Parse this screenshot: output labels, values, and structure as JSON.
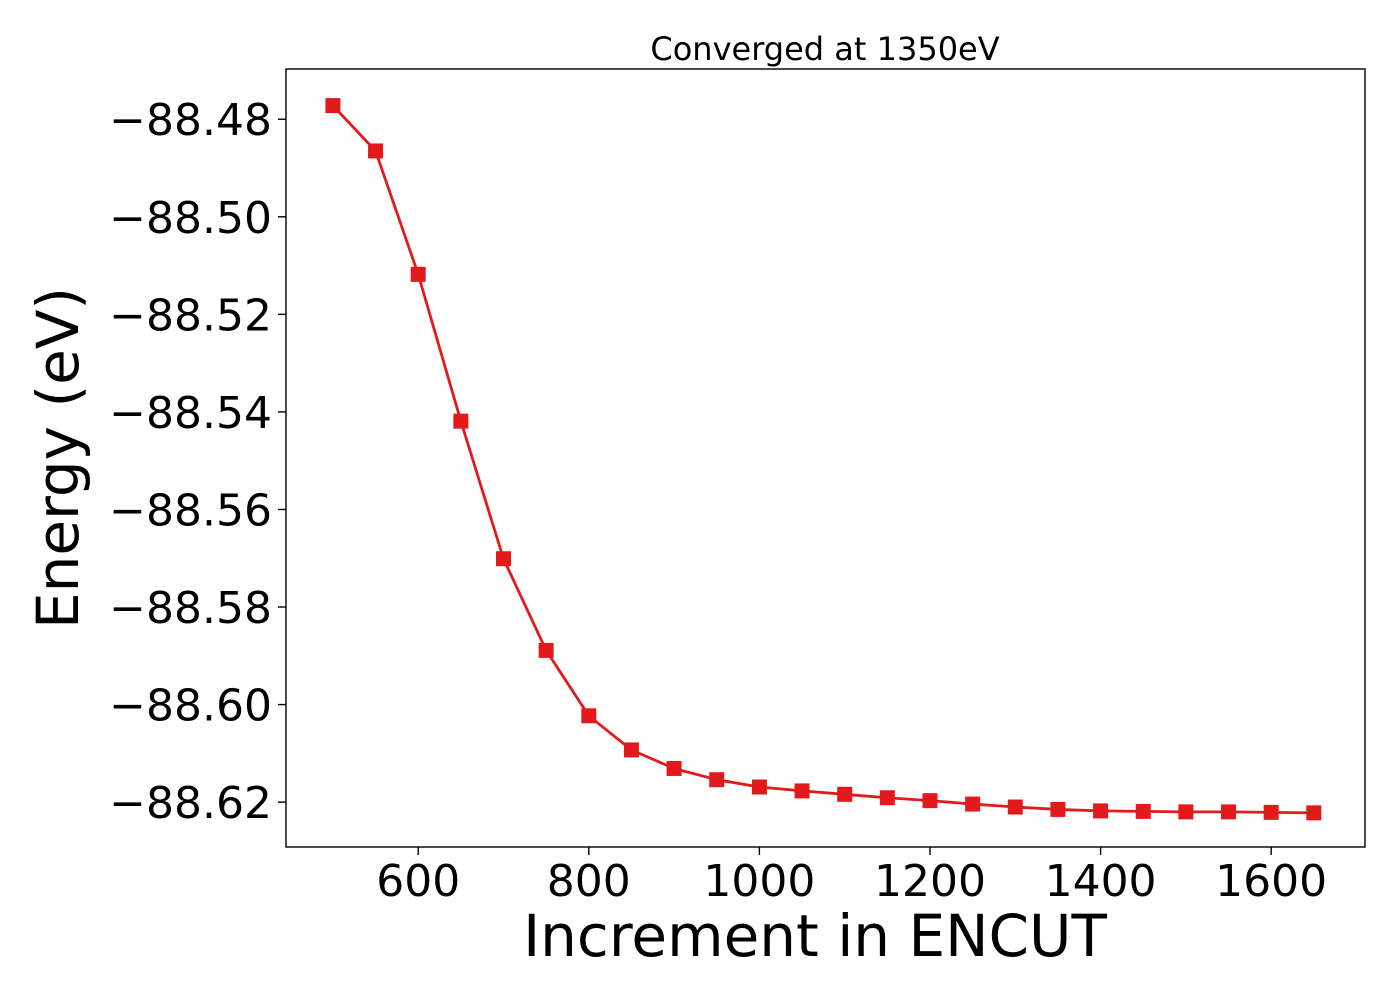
{
  "chart_data": {
    "type": "line",
    "title": "Converged at 1350eV",
    "xlabel": "Increment in ENCUT",
    "ylabel": "Energy (eV)",
    "xlim": [
      445,
      1710
    ],
    "ylim": [
      -88.6292,
      -88.4697
    ],
    "xticks": [
      600,
      800,
      1000,
      1200,
      1400,
      1600
    ],
    "yticks": [
      -88.48,
      -88.5,
      -88.52,
      -88.54,
      -88.56,
      -88.58,
      -88.6,
      -88.62
    ],
    "ytick_labels": [
      "−88.48",
      "−88.50",
      "−88.52",
      "−88.54",
      "−88.56",
      "−88.58",
      "−88.60",
      "−88.62"
    ],
    "grid": false,
    "marker": "square",
    "color": "#e31a1c",
    "series": [
      {
        "x": [
          500,
          550,
          600,
          650,
          700,
          750,
          800,
          850,
          900,
          950,
          1000,
          1050,
          1100,
          1150,
          1200,
          1250,
          1300,
          1350,
          1400,
          1450,
          1500,
          1550,
          1600,
          1650
        ],
        "values": [
          -88.4772,
          -88.4865,
          -88.5118,
          -88.5419,
          -88.5701,
          -88.5889,
          -88.6023,
          -88.6093,
          -88.6131,
          -88.6154,
          -88.6169,
          -88.6177,
          -88.6184,
          -88.6191,
          -88.6197,
          -88.6204,
          -88.621,
          -88.6215,
          -88.6218,
          -88.6219,
          -88.622,
          -88.622,
          -88.6221,
          -88.6222
        ]
      }
    ]
  }
}
